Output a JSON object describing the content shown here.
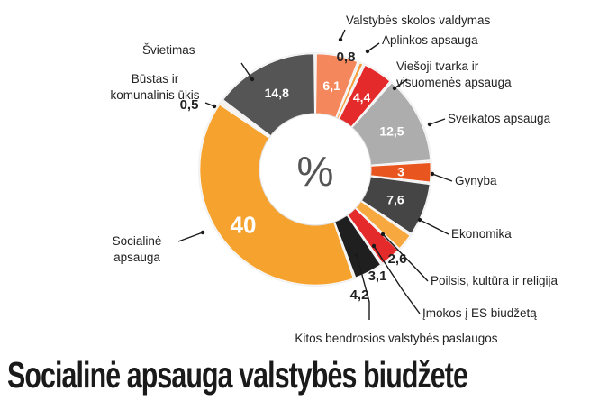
{
  "chart_data": {
    "type": "pie",
    "title": "Socialinė apsauga valstybės biudžete",
    "center_label": "%",
    "slices": [
      {
        "label": "Valstybės skolos valdymas",
        "value": 6.1,
        "value_text": "6,1",
        "color": "#f4875b",
        "value_color": "#ffffff"
      },
      {
        "label": "Aplinkos apsauga",
        "value": 0.8,
        "value_text": "0,8",
        "color": "#f49c3d",
        "value_color": "#222222"
      },
      {
        "label": "Viešoji tvarka ir visuomenės apsauga",
        "value": 4.4,
        "value_text": "4,4",
        "color": "#e42a2a",
        "value_color": "#ffffff"
      },
      {
        "label": "Sveikatos apsauga",
        "value": 12.5,
        "value_text": "12,5",
        "color": "#adadad",
        "value_color": "#ffffff"
      },
      {
        "label": "Gynyba",
        "value": 3,
        "value_text": "3",
        "color": "#e8551f",
        "value_color": "#ffffff"
      },
      {
        "label": "Ekonomika",
        "value": 7.6,
        "value_text": "7,6",
        "color": "#454545",
        "value_color": "#ffffff"
      },
      {
        "label": "Poilsis, kultūra ir religija",
        "value": 2.6,
        "value_text": "2,6",
        "color": "#f7a93f",
        "value_color": "#222222"
      },
      {
        "label": "Įmokos į ES biudžetą",
        "value": 3.1,
        "value_text": "3,1",
        "color": "#e42a2a",
        "value_color": "#222222"
      },
      {
        "label": "Kitos bendrosios valstybės paslaugos",
        "value": 4.2,
        "value_text": "4,2",
        "color": "#1f1f1f",
        "value_color": "#222222"
      },
      {
        "label": "Socialinė apsauga",
        "value": 40,
        "value_text": "40",
        "color": "#f6a22e",
        "value_color": "#ffffff"
      },
      {
        "label": "Būstas ir komunalinis ūkis",
        "value": 0.5,
        "value_text": "0,5",
        "color": "#f6b26a",
        "value_color": "#222222"
      },
      {
        "label": "Švietimas",
        "value": 14.8,
        "value_text": "14,8",
        "color": "#555555",
        "value_color": "#ffffff"
      }
    ]
  }
}
